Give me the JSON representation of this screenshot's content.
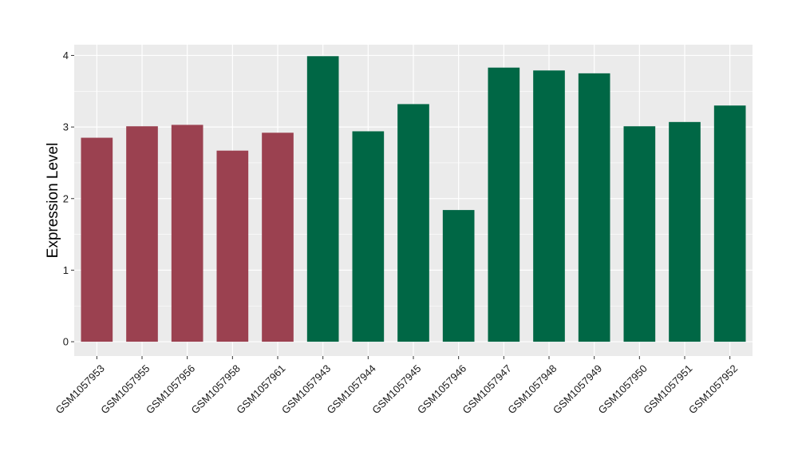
{
  "chart_data": {
    "type": "bar",
    "title": "",
    "xlabel": "",
    "ylabel": "Expression Level",
    "ylim": [
      -0.2,
      4.15
    ],
    "yticks": [
      0,
      1,
      2,
      3,
      4
    ],
    "grid": true,
    "categories": [
      "GSM1057953",
      "GSM1057955",
      "GSM1057956",
      "GSM1057958",
      "GSM1057961",
      "GSM1057943",
      "GSM1057944",
      "GSM1057945",
      "GSM1057946",
      "GSM1057947",
      "GSM1057948",
      "GSM1057949",
      "GSM1057950",
      "GSM1057951",
      "GSM1057952"
    ],
    "values": [
      2.85,
      3.01,
      3.03,
      2.67,
      2.92,
      3.99,
      2.94,
      3.32,
      1.84,
      3.83,
      3.79,
      3.75,
      3.01,
      3.07,
      3.3
    ],
    "groups": [
      0,
      0,
      0,
      0,
      0,
      1,
      1,
      1,
      1,
      1,
      1,
      1,
      1,
      1,
      1
    ],
    "group_colors": [
      "#9b4150",
      "#006745"
    ],
    "panel_background": "#ebebeb",
    "grid_color": "#ffffff"
  }
}
